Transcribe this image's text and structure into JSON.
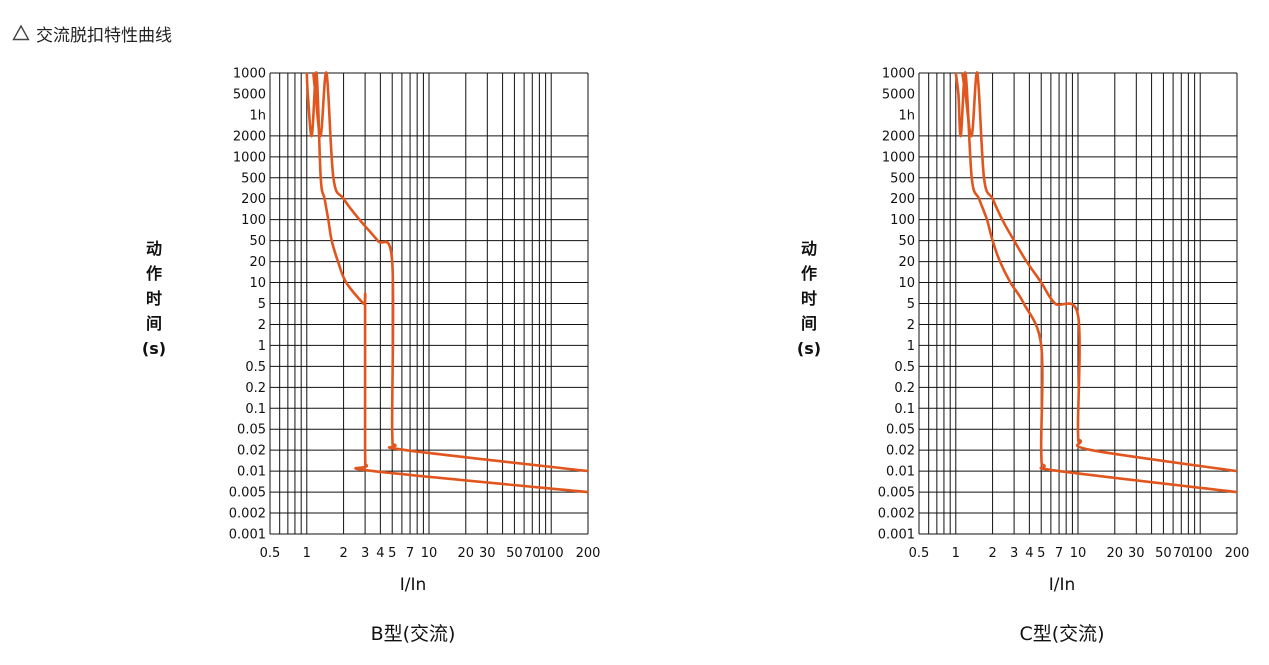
{
  "header": {
    "icon": "triangle-outline-icon",
    "title": "交流脱扣特性曲线"
  },
  "curve_color": "#e0561e",
  "chart_data": [
    {
      "type": "line",
      "title": "B型(交流)",
      "xlabel": "I/In",
      "ylabel": "动\n作\n时\n间\n(s)",
      "x_scale": "log",
      "x_ticks": [
        {
          "v": 0.5,
          "label": "0.5"
        },
        {
          "v": 1,
          "label": "1"
        },
        {
          "v": 2,
          "label": "2"
        },
        {
          "v": 3,
          "label": "3"
        },
        {
          "v": 4,
          "label": "4"
        },
        {
          "v": 5,
          "label": "5"
        },
        {
          "v": 7,
          "label": "7"
        },
        {
          "v": 10,
          "label": "10"
        },
        {
          "v": 20,
          "label": "20"
        },
        {
          "v": 30,
          "label": "30"
        },
        {
          "v": 50,
          "label": "50"
        },
        {
          "v": 70,
          "label": "70"
        },
        {
          "v": 100,
          "label": "100"
        },
        {
          "v": 200,
          "label": "200"
        }
      ],
      "y_ticks": [
        "1000",
        "5000",
        "1h",
        "2000",
        "1000",
        "500",
        "200",
        "100",
        "50",
        "20",
        "10",
        "5",
        "2",
        "1",
        "0.5",
        "0.2",
        "0.1",
        "0.05",
        "0.02",
        "0.01",
        "0.005",
        "0.002",
        "0.001"
      ],
      "grid": true,
      "series": [
        {
          "points": [
            [
              1,
              "1000"
            ],
            [
              1.02,
              "5000"
            ],
            [
              1.1,
              "2000"
            ],
            [
              1.2,
              "1000"
            ],
            [
              1.3,
              "500"
            ],
            [
              1.4,
              "200"
            ],
            [
              1.5,
              "100"
            ],
            [
              1.6,
              "50"
            ],
            [
              1.8,
              "20"
            ],
            [
              2.1,
              "10"
            ],
            [
              2.9,
              "5"
            ],
            [
              3,
              "5"
            ],
            [
              3,
              "0.02"
            ],
            [
              3.1,
              "0.012"
            ],
            [
              3.5,
              "0.01"
            ],
            [
              200,
              "0.005"
            ]
          ]
        },
        {
          "points": [
            [
              1.13,
              "1000"
            ],
            [
              1.18,
              "5000"
            ],
            [
              1.3,
              "2000"
            ],
            [
              1.45,
              "1000"
            ],
            [
              1.65,
              "500"
            ],
            [
              2.0,
              "200"
            ],
            [
              2.7,
              "100"
            ],
            [
              3.8,
              "50"
            ],
            [
              5,
              "20"
            ],
            [
              5,
              "0.05"
            ],
            [
              5.3,
              "0.025"
            ],
            [
              6.5,
              "0.02"
            ],
            [
              200,
              "0.01"
            ]
          ]
        }
      ]
    },
    {
      "type": "line",
      "title": "C型(交流)",
      "xlabel": "I/In",
      "ylabel": "动\n作\n时\n间\n(s)",
      "x_scale": "log",
      "x_ticks": [
        {
          "v": 0.5,
          "label": "0.5"
        },
        {
          "v": 1,
          "label": "1"
        },
        {
          "v": 2,
          "label": "2"
        },
        {
          "v": 3,
          "label": "3"
        },
        {
          "v": 4,
          "label": "4"
        },
        {
          "v": 5,
          "label": "5"
        },
        {
          "v": 7,
          "label": "7"
        },
        {
          "v": 10,
          "label": "10"
        },
        {
          "v": 20,
          "label": "20"
        },
        {
          "v": 30,
          "label": "30"
        },
        {
          "v": 50,
          "label": "50"
        },
        {
          "v": 70,
          "label": "70"
        },
        {
          "v": 100,
          "label": "100"
        },
        {
          "v": 200,
          "label": "200"
        }
      ],
      "y_ticks": [
        "1000",
        "5000",
        "1h",
        "2000",
        "1000",
        "500",
        "200",
        "100",
        "50",
        "20",
        "10",
        "5",
        "2",
        "1",
        "0.5",
        "0.2",
        "0.1",
        "0.05",
        "0.02",
        "0.01",
        "0.005",
        "0.002",
        "0.001"
      ],
      "grid": true,
      "series": [
        {
          "points": [
            [
              1,
              "1000"
            ],
            [
              1.05,
              "5000"
            ],
            [
              1.1,
              "2000"
            ],
            [
              1.2,
              "1000"
            ],
            [
              1.35,
              "500"
            ],
            [
              1.55,
              "200"
            ],
            [
              1.8,
              "100"
            ],
            [
              2.0,
              "50"
            ],
            [
              2.3,
              "20"
            ],
            [
              2.8,
              "10"
            ],
            [
              3.6,
              "5"
            ],
            [
              5,
              "1"
            ],
            [
              5,
              "0.02"
            ],
            [
              5.3,
              "0.012"
            ],
            [
              7,
              "0.01"
            ],
            [
              200,
              "0.005"
            ]
          ]
        },
        {
          "points": [
            [
              1.13,
              "1000"
            ],
            [
              1.2,
              "5000"
            ],
            [
              1.35,
              "2000"
            ],
            [
              1.5,
              "1000"
            ],
            [
              1.7,
              "500"
            ],
            [
              2.0,
              "200"
            ],
            [
              2.4,
              "100"
            ],
            [
              3.0,
              "50"
            ],
            [
              3.8,
              "20"
            ],
            [
              5.0,
              "10"
            ],
            [
              6.5,
              "5"
            ],
            [
              10,
              "3"
            ],
            [
              10,
              "0.05"
            ],
            [
              10.5,
              "0.03"
            ],
            [
              13,
              "0.02"
            ],
            [
              200,
              "0.01"
            ]
          ]
        }
      ]
    }
  ]
}
